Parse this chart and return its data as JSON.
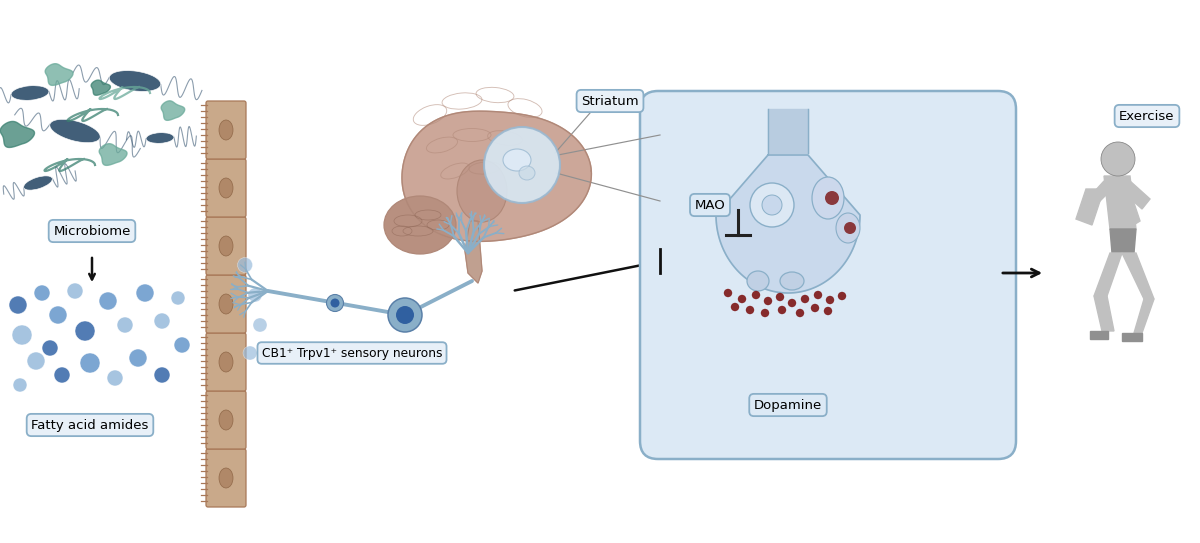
{
  "bg_color": "#ffffff",
  "label_microbiome": "Microbiome",
  "label_fatty_acid": "Fatty acid amides",
  "label_cb1": "CB1⁺ Trpv1⁺ sensory neurons",
  "label_striatum": "Striatum",
  "label_mao": "MAO",
  "label_dopamine": "Dopamine",
  "label_exercise": "Exercise",
  "box_bg": "#dce9f5",
  "box_border": "#8aafc8",
  "pill_bg": "#e8f0f8",
  "pill_border": "#8aafc8",
  "brain_main": "#c8a090",
  "brain_dark": "#b08878",
  "brain_inner": "#d4b0a0",
  "brain_stem": "#c0a090",
  "striatum_fill": "#d8e8f4",
  "striatum_border": "#9ab8d0",
  "bacteria_dark": "#2d4d6a",
  "bacteria_teal": "#3a8070",
  "bacteria_light": "#6aaa9a",
  "dot_dark": "#3a6aaa",
  "dot_mid": "#6a9acc",
  "dot_light": "#9abcdc",
  "neuron_color": "#8aafc8",
  "neuron_dark": "#5a80a8",
  "intestine_color": "#c9a98a",
  "arrow_color": "#111111",
  "red_dot_color": "#7a1010",
  "runner_body": "#c0c0c0",
  "runner_dark": "#909090"
}
